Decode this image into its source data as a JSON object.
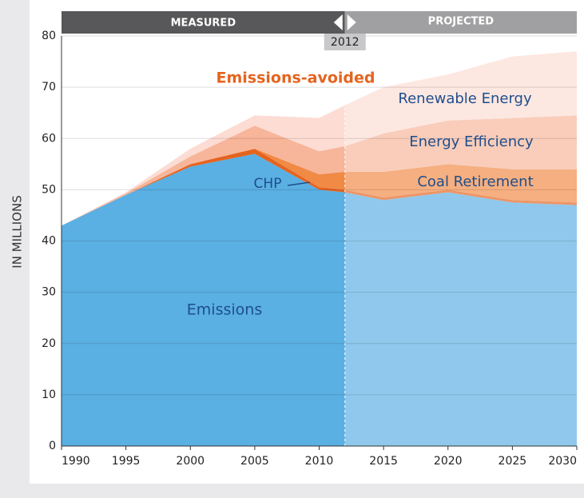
{
  "chart_data": {
    "type": "stacked_area",
    "header_left": "MEASURED",
    "header_right": "PROJECTED",
    "divider_x": 2012,
    "ylabel": "IN MILLIONS",
    "annotation": "Emissions-avoided",
    "x": [
      1990,
      1995,
      2000,
      2005,
      2010,
      2012,
      2015,
      2020,
      2025,
      2030
    ],
    "series": [
      {
        "name": "Emissions",
        "color": "#5aafe3",
        "values": [
          43,
          49,
          54.5,
          57,
          50,
          49.5,
          48,
          49.5,
          47.5,
          47
        ]
      },
      {
        "name": "CHP",
        "color": "#e4641f",
        "values": [
          0,
          0,
          0.5,
          1,
          0.5,
          0.5,
          0.5,
          0.5,
          0.5,
          0.5
        ]
      },
      {
        "name": "Coal Retirement",
        "color": "#f08a45",
        "values": [
          0,
          0,
          0,
          0,
          2.5,
          3.5,
          5,
          5,
          6,
          6.5
        ]
      },
      {
        "name": "Energy Efficiency",
        "color": "#f7b59a",
        "values": [
          0,
          0.3,
          1.5,
          4.5,
          4.5,
          5,
          7.5,
          8.5,
          10,
          10.5
        ]
      },
      {
        "name": "Renewable Energy",
        "color": "#fcdcd3",
        "values": [
          0,
          0.2,
          1.5,
          2,
          6.5,
          8,
          9,
          9,
          12,
          12.5
        ]
      }
    ],
    "xlim": [
      1990,
      2030
    ],
    "xticks": [
      1990,
      1995,
      2000,
      2005,
      2010,
      2015,
      2020,
      2025,
      2030
    ],
    "ylim": [
      0,
      80
    ],
    "yticks": [
      0,
      10,
      20,
      30,
      40,
      50,
      60,
      70,
      80
    ],
    "grid": true
  }
}
